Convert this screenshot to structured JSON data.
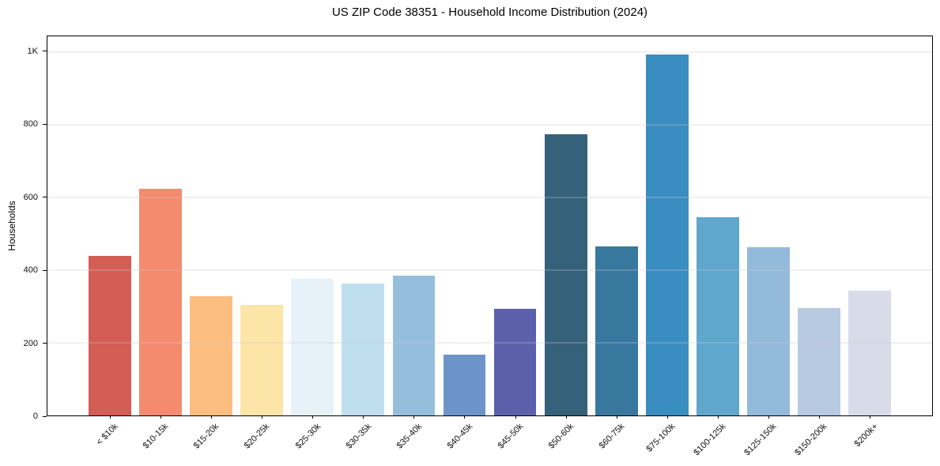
{
  "chart_data": {
    "type": "bar",
    "title": "US ZIP Code 38351 - Household Income Distribution (2024)",
    "xlabel": "",
    "ylabel": "Households",
    "ylim": [
      0,
      1043
    ],
    "grid": true,
    "legend_position": "none",
    "yticks": [
      {
        "value": 0,
        "label": "0"
      },
      {
        "value": 200,
        "label": "200"
      },
      {
        "value": 400,
        "label": "400"
      },
      {
        "value": 600,
        "label": "600"
      },
      {
        "value": 800,
        "label": "800"
      },
      {
        "value": 1000,
        "label": "1K"
      }
    ],
    "categories": [
      "< $10k",
      "$10-15k",
      "$15-20k",
      "$20-25k",
      "$25-30k",
      "$30-35k",
      "$35-40k",
      "$40-45k",
      "$45-50k",
      "$50-60k",
      "$60-75k",
      "$75-100k",
      "$100-125k",
      "$125-150k",
      "$150-200k",
      "$200k+"
    ],
    "values": [
      440,
      624,
      329,
      305,
      377,
      362,
      385,
      167,
      293,
      773,
      465,
      993,
      546,
      462,
      295,
      343
    ],
    "bar_colors": [
      "#d45d56",
      "#f58b6e",
      "#fbbd80",
      "#fde5a7",
      "#e6f2f7",
      "#bfdfee",
      "#95bedd",
      "#6d94ca",
      "#5c60ab",
      "#35617a",
      "#38789f",
      "#3a8dc1",
      "#60a7ce",
      "#93badb",
      "#b8c9e2",
      "#d8dbe9"
    ]
  },
  "colors": {
    "background": "#ffffff",
    "spine": "#000000",
    "gridline": "#e8e8ec",
    "text": "#000000"
  }
}
